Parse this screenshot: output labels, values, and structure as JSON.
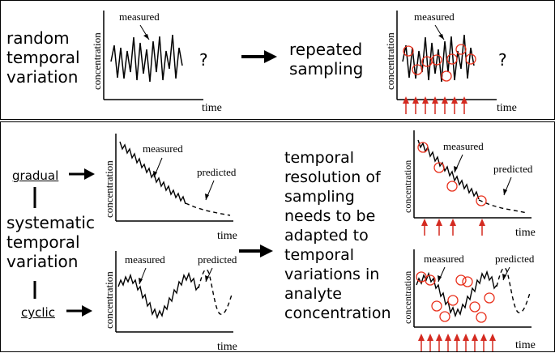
{
  "top": {
    "left_label": [
      "random",
      "temporal",
      "variation"
    ],
    "middle_label": [
      "repeated",
      "sampling"
    ],
    "question_mark": "?",
    "plot_labels": {
      "measured": "measured",
      "y": "concentration",
      "x": "time"
    }
  },
  "bottom": {
    "gradual": "gradual",
    "cyclic": "cyclic",
    "systematic_label": [
      "systematic",
      "temporal",
      "variation"
    ],
    "center_text": [
      "temporal",
      "resolution of",
      "sampling",
      "needs to be",
      "adapted to",
      "temporal",
      "variations in",
      "analyte",
      "concentration"
    ],
    "plot_labels": {
      "measured": "measured",
      "predicted": "predicted",
      "y": "concentration",
      "x": "time"
    }
  },
  "colors": {
    "sample_circle": "#e8301c",
    "sample_arrow": "#d42a20",
    "line": "#000000"
  }
}
